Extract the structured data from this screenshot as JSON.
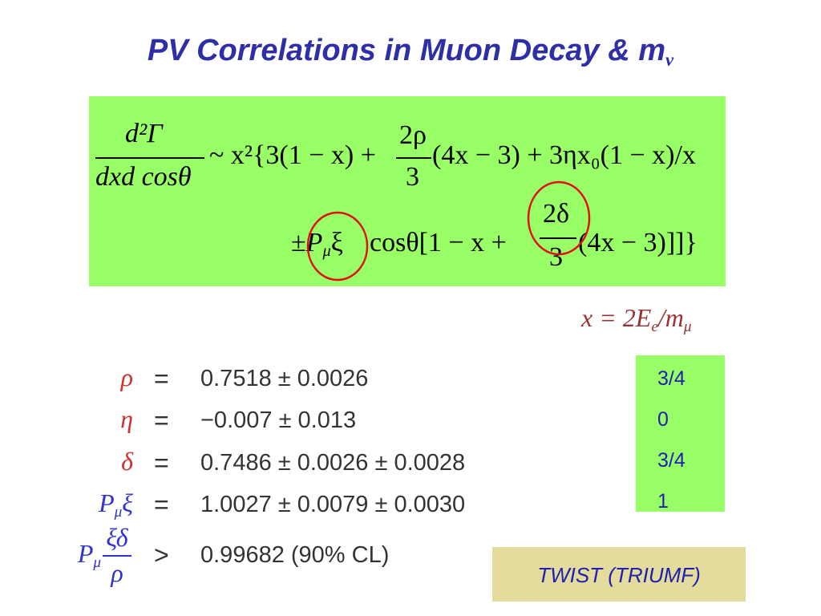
{
  "title": {
    "text": "PV Correlations in Muon Decay & m",
    "sub": "ν"
  },
  "formula": {
    "lhs_num": "d²Γ",
    "lhs_den": "dxd  cosθ",
    "line1_a": "~ x²{3(1 − x) +",
    "frac1_num": "2ρ",
    "frac1_den": "3",
    "line1_b": "(4x − 3) + 3ηx₀(1 − x)/x",
    "line2_pm": "±",
    "line2_p": "P",
    "line2_psub": "μ",
    "line2_xi": "ξ",
    "line2_a": "cosθ[1 − x +",
    "frac2_num": "2δ",
    "frac2_den": "3",
    "line2_b": "(4x − 3)]]}"
  },
  "definition": {
    "a": "x = 2E",
    "sub1": "e",
    "b": "/m",
    "sub2": "μ"
  },
  "results": [
    {
      "param": "ρ",
      "rel": "=",
      "value": "0.7518 ± 0.0026"
    },
    {
      "param": "η",
      "rel": "=",
      "value": "−0.007 ± 0.013"
    },
    {
      "param": "δ",
      "rel": "=",
      "value": "0.7486 ± 0.0026 ± 0.0028"
    },
    {
      "param": "P",
      "param_sub": "μ",
      "param_rest": "ξ",
      "rel": "=",
      "value": "1.0027 ± 0.0079 ± 0.0030"
    },
    {
      "param": "P",
      "param_sub": "μ",
      "param_num": "ξδ",
      "param_den": "ρ",
      "rel": ">",
      "value": "0.99682 (90% CL)"
    }
  ],
  "predictions": [
    "3/4",
    "0",
    "3/4",
    "1"
  ],
  "source": "TWIST (TRIUMF)"
}
